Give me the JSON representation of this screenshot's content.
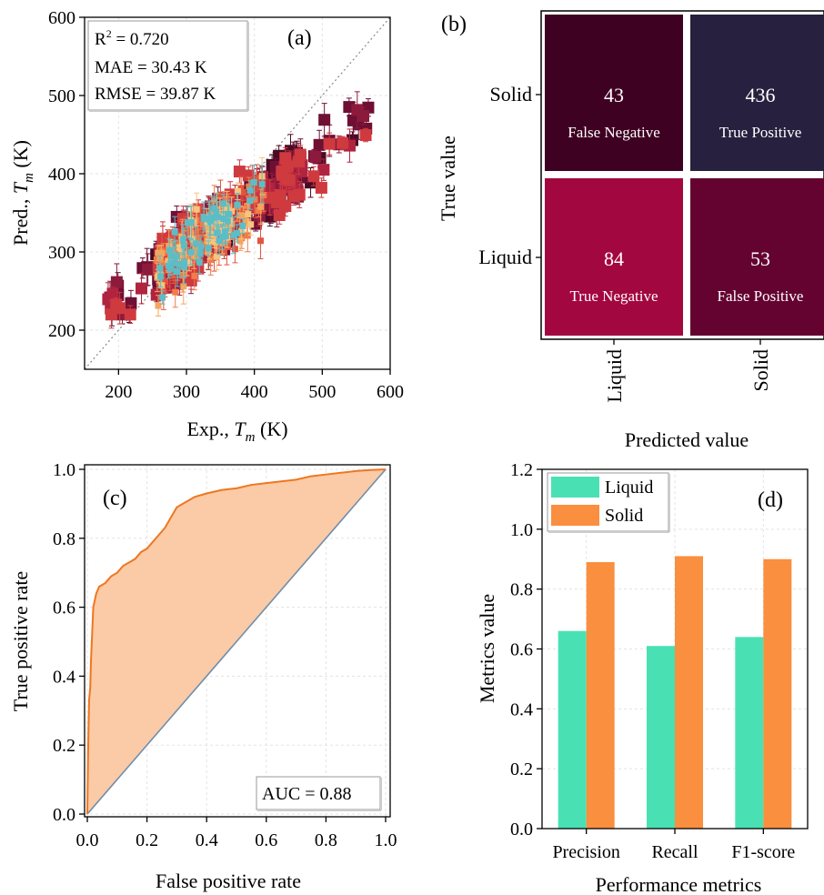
{
  "colors": {
    "scatter_palette": [
      "#4a0a24",
      "#6e0f33",
      "#8c1a3c",
      "#b0243f",
      "#cf3a3f",
      "#e2553e",
      "#ef7d4a",
      "#f5a55e",
      "#f7c57c",
      "#5dbdc6"
    ],
    "cm_tn": "#a3073f",
    "cm_fn": "#3f0122",
    "cm_fp": "#640330",
    "cm_tp": "#27213f",
    "roc_line": "#ee7721",
    "roc_fill": "#fbcaa6",
    "diag": "#6f8eaa",
    "bar_liquid": "#49e1b4",
    "bar_solid": "#f98f3f"
  },
  "chart_data": [
    {
      "type": "scatter",
      "panel_label": "(a)",
      "xlabel_main": "Exp., ",
      "xlabel_sym": "T",
      "xlabel_sub": "m",
      "xlabel_unit": " (K)",
      "ylabel_main": "Pred., ",
      "ylabel_sym": "T",
      "ylabel_sub": "m",
      "ylabel_unit": " (K)",
      "xlim": [
        150,
        600
      ],
      "ylim": [
        150,
        600
      ],
      "xticks": [
        200,
        300,
        400,
        500,
        600
      ],
      "yticks": [
        200,
        300,
        400,
        500,
        600
      ],
      "stats": {
        "r2_label": "R",
        "r2_sup": "2",
        "r2_value": " = 0.720",
        "mae": "MAE = 30.43 K",
        "rmse": "RMSE = 39.87 K"
      },
      "n_points": 616,
      "exp_range": [
        178,
        570
      ],
      "pred_range": [
        220,
        540
      ],
      "identity_line": true,
      "grid": true
    },
    {
      "type": "heatmap",
      "panel_label": "(b)",
      "xlabel": "Predicted value",
      "ylabel": "True value",
      "row_labels": [
        "Solid",
        "Liquid"
      ],
      "col_labels": [
        "Liquid",
        "Solid"
      ],
      "cells": [
        [
          {
            "value": "43",
            "label": "False Negative"
          },
          {
            "value": "436",
            "label": "True Positive"
          }
        ],
        [
          {
            "value": "84",
            "label": "True Negative"
          },
          {
            "value": "53",
            "label": "False Positive"
          }
        ]
      ]
    },
    {
      "type": "area",
      "panel_label": "(c)",
      "xlabel": "False positive rate",
      "ylabel": "True positive rate",
      "xlim": [
        0,
        1
      ],
      "ylim": [
        0,
        1
      ],
      "xticks": [
        "0.0",
        "0.2",
        "0.4",
        "0.6",
        "0.8",
        "1.0"
      ],
      "yticks": [
        "0.0",
        "0.2",
        "0.4",
        "0.6",
        "0.8",
        "1.0"
      ],
      "auc_text": "AUC = 0.88",
      "x": [
        0,
        0.003,
        0.006,
        0.01,
        0.012,
        0.015,
        0.02,
        0.025,
        0.03,
        0.04,
        0.05,
        0.06,
        0.08,
        0.1,
        0.12,
        0.14,
        0.16,
        0.18,
        0.2,
        0.22,
        0.24,
        0.26,
        0.28,
        0.3,
        0.32,
        0.34,
        0.36,
        0.4,
        0.45,
        0.5,
        0.55,
        0.6,
        0.65,
        0.7,
        0.75,
        0.8,
        0.85,
        0.9,
        0.95,
        1.0
      ],
      "y": [
        0,
        0.2,
        0.33,
        0.37,
        0.44,
        0.5,
        0.6,
        0.62,
        0.64,
        0.66,
        0.665,
        0.67,
        0.69,
        0.7,
        0.72,
        0.73,
        0.74,
        0.76,
        0.77,
        0.79,
        0.81,
        0.83,
        0.86,
        0.89,
        0.9,
        0.91,
        0.92,
        0.93,
        0.94,
        0.945,
        0.955,
        0.96,
        0.965,
        0.97,
        0.98,
        0.985,
        0.99,
        0.995,
        0.998,
        1.0
      ],
      "diagonal": true,
      "grid": true
    },
    {
      "type": "bar",
      "panel_label": "(d)",
      "xlabel": "Performance metrics",
      "ylabel": "Metrics value",
      "categories": [
        "Precision",
        "Recall",
        "F1-score"
      ],
      "series": [
        {
          "name": "Liquid",
          "values": [
            0.66,
            0.61,
            0.64
          ]
        },
        {
          "name": "Solid",
          "values": [
            0.89,
            0.91,
            0.9
          ]
        }
      ],
      "ylim": [
        0,
        1.2
      ],
      "yticks": [
        "0.0",
        "0.2",
        "0.4",
        "0.6",
        "0.8",
        "1.0",
        "1.2"
      ],
      "legend": "top-left",
      "grid": true
    }
  ]
}
